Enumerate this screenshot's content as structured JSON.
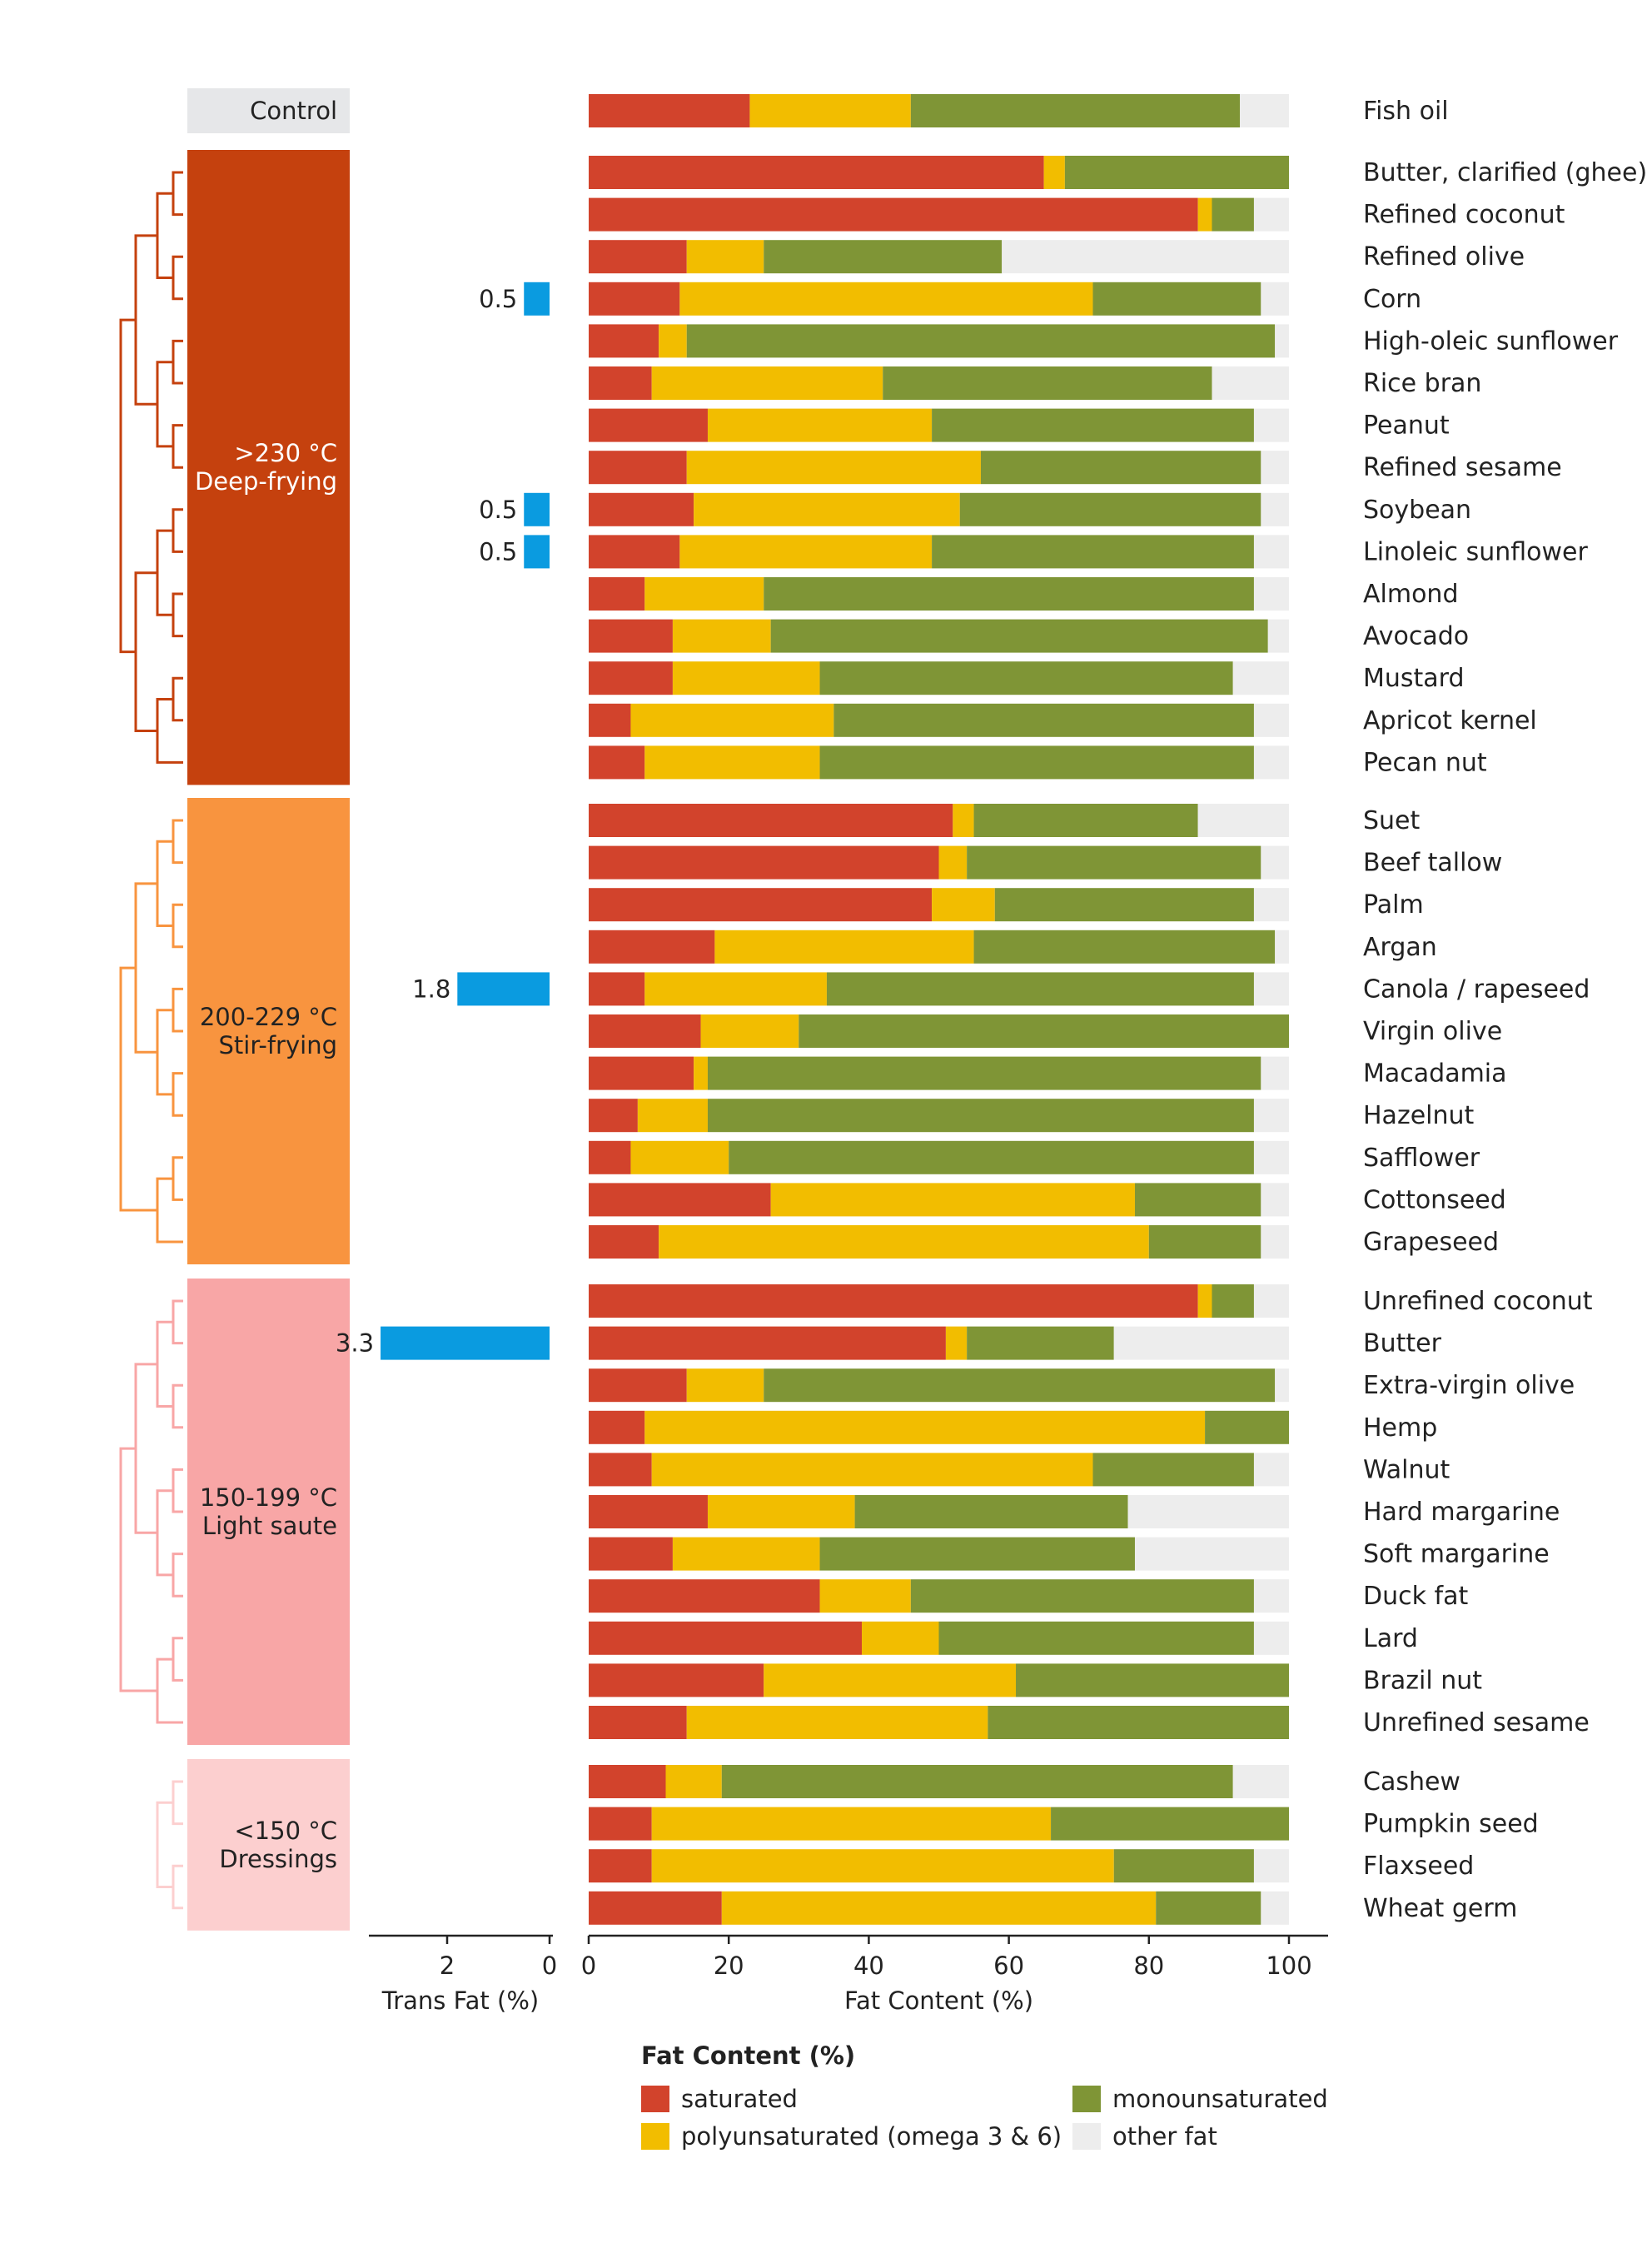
{
  "colors": {
    "saturated": "#d2432c",
    "polyunsaturated": "#f2bd00",
    "monounsaturated": "#7f9536",
    "other": "#ededed",
    "trans": "#0a9be0",
    "control_band": "#e6e7e9",
    "group_deep": "#c5410e",
    "group_stir": "#f8943f",
    "group_light": "#f8a6a6",
    "group_dress": "#fccfcf"
  },
  "chart_data": {
    "type": "bar",
    "stacked": true,
    "orientation": "horizontal",
    "xlabel": "Fat Content (%)",
    "xlim": [
      0,
      100
    ],
    "xticks": [
      "0",
      "20",
      "40",
      "60",
      "80",
      "100"
    ],
    "trans_xlabel": "Trans Fat (%)",
    "trans_xticks": [
      "2",
      "0"
    ],
    "legend": {
      "title": "Fat Content (%)",
      "placement": "bottom",
      "items": [
        {
          "key": "saturated",
          "label": "saturated"
        },
        {
          "key": "polyunsaturated",
          "label": "polyunsaturated (omega 3 & 6)"
        },
        {
          "key": "monounsaturated",
          "label": "monounsaturated"
        },
        {
          "key": "other",
          "label": "other fat"
        }
      ]
    },
    "groups": [
      {
        "key": "control",
        "label_lines": [
          "Control"
        ],
        "oils": [
          {
            "name": "Fish oil",
            "sat": 23,
            "poly": 23,
            "mono": 47
          }
        ]
      },
      {
        "key": "deep",
        "label_lines": [
          ">230 °C",
          "Deep-frying"
        ],
        "oils": [
          {
            "name": "Butter, clarified (ghee)",
            "sat": 65,
            "poly": 3,
            "mono": 32
          },
          {
            "name": "Refined coconut",
            "sat": 87,
            "poly": 2,
            "mono": 6
          },
          {
            "name": "Refined olive",
            "sat": 14,
            "poly": 11,
            "mono": 34
          },
          {
            "name": "Corn",
            "sat": 13,
            "poly": 59,
            "mono": 24,
            "trans": 0.5,
            "trans_label": "0.5"
          },
          {
            "name": "High-oleic sunflower",
            "sat": 10,
            "poly": 4,
            "mono": 84
          },
          {
            "name": "Rice bran",
            "sat": 9,
            "poly": 33,
            "mono": 47
          },
          {
            "name": "Peanut",
            "sat": 17,
            "poly": 32,
            "mono": 46
          },
          {
            "name": "Refined sesame",
            "sat": 14,
            "poly": 42,
            "mono": 40
          },
          {
            "name": "Soybean",
            "sat": 15,
            "poly": 38,
            "mono": 43,
            "trans": 0.5,
            "trans_label": "0.5"
          },
          {
            "name": "Linoleic sunflower",
            "sat": 13,
            "poly": 36,
            "mono": 46,
            "trans": 0.5,
            "trans_label": "0.5"
          },
          {
            "name": "Almond",
            "sat": 8,
            "poly": 17,
            "mono": 70
          },
          {
            "name": "Avocado",
            "sat": 12,
            "poly": 14,
            "mono": 71
          },
          {
            "name": "Mustard",
            "sat": 12,
            "poly": 21,
            "mono": 59
          },
          {
            "name": "Apricot kernel",
            "sat": 6,
            "poly": 29,
            "mono": 60
          },
          {
            "name": "Pecan nut",
            "sat": 8,
            "poly": 25,
            "mono": 62
          }
        ]
      },
      {
        "key": "stir",
        "label_lines": [
          "200-229 °C",
          "Stir-frying"
        ],
        "oils": [
          {
            "name": "Suet",
            "sat": 52,
            "poly": 3,
            "mono": 32
          },
          {
            "name": "Beef tallow",
            "sat": 50,
            "poly": 4,
            "mono": 42
          },
          {
            "name": "Palm",
            "sat": 49,
            "poly": 9,
            "mono": 37
          },
          {
            "name": "Argan",
            "sat": 18,
            "poly": 37,
            "mono": 43
          },
          {
            "name": "Canola / rapeseed",
            "sat": 8,
            "poly": 26,
            "mono": 61,
            "trans": 1.8,
            "trans_label": "1.8"
          },
          {
            "name": "Virgin olive",
            "sat": 16,
            "poly": 14,
            "mono": 70
          },
          {
            "name": "Macadamia",
            "sat": 15,
            "poly": 2,
            "mono": 79
          },
          {
            "name": "Hazelnut",
            "sat": 7,
            "poly": 10,
            "mono": 78
          },
          {
            "name": "Safflower",
            "sat": 6,
            "poly": 14,
            "mono": 75
          },
          {
            "name": "Cottonseed",
            "sat": 26,
            "poly": 52,
            "mono": 18
          },
          {
            "name": "Grapeseed",
            "sat": 10,
            "poly": 70,
            "mono": 16
          }
        ]
      },
      {
        "key": "light",
        "label_lines": [
          "150-199 °C",
          "Light saute"
        ],
        "oils": [
          {
            "name": "Unrefined coconut",
            "sat": 87,
            "poly": 2,
            "mono": 6
          },
          {
            "name": "Butter",
            "sat": 51,
            "poly": 3,
            "mono": 21,
            "trans": 3.3,
            "trans_label": "3.3"
          },
          {
            "name": "Extra-virgin olive",
            "sat": 14,
            "poly": 11,
            "mono": 73
          },
          {
            "name": "Hemp",
            "sat": 8,
            "poly": 80,
            "mono": 12
          },
          {
            "name": "Walnut",
            "sat": 9,
            "poly": 63,
            "mono": 23
          },
          {
            "name": "Hard margarine",
            "sat": 17,
            "poly": 21,
            "mono": 39
          },
          {
            "name": "Soft margarine",
            "sat": 12,
            "poly": 21,
            "mono": 45
          },
          {
            "name": "Duck fat",
            "sat": 33,
            "poly": 13,
            "mono": 49
          },
          {
            "name": "Lard",
            "sat": 39,
            "poly": 11,
            "mono": 45
          },
          {
            "name": "Brazil nut",
            "sat": 25,
            "poly": 36,
            "mono": 39
          },
          {
            "name": "Unrefined sesame",
            "sat": 14,
            "poly": 43,
            "mono": 43
          }
        ]
      },
      {
        "key": "dress",
        "label_lines": [
          "<150 °C",
          "Dressings"
        ],
        "oils": [
          {
            "name": "Cashew",
            "sat": 11,
            "poly": 8,
            "mono": 73
          },
          {
            "name": "Pumpkin seed",
            "sat": 9,
            "poly": 57,
            "mono": 34
          },
          {
            "name": "Flaxseed",
            "sat": 9,
            "poly": 66,
            "mono": 20
          },
          {
            "name": "Wheat germ",
            "sat": 19,
            "poly": 62,
            "mono": 15
          }
        ]
      }
    ]
  }
}
